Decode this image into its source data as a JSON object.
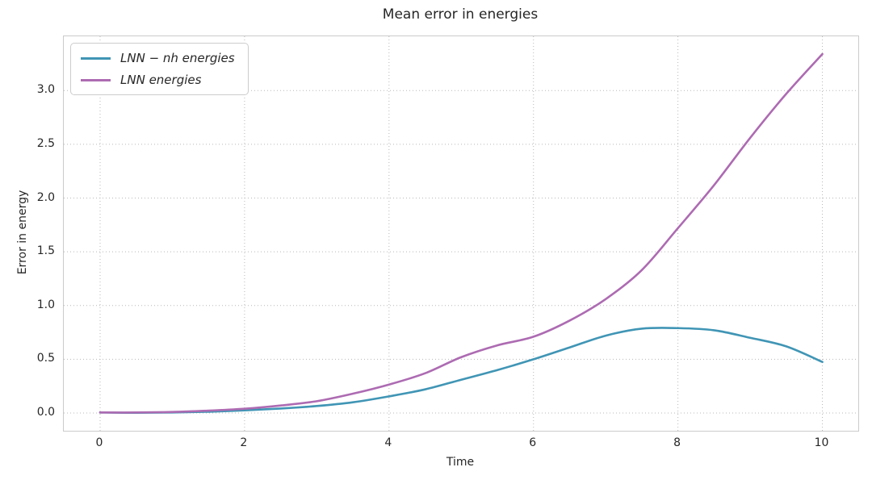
{
  "chart_data": {
    "type": "line",
    "title": "Mean error in energies",
    "xlabel": "Time",
    "ylabel": "Error in energy",
    "xlim": [
      -0.503,
      10.497
    ],
    "ylim": [
      -0.165,
      3.505
    ],
    "xticks": [
      0,
      2,
      4,
      6,
      8,
      10
    ],
    "xtick_labels": [
      "0",
      "2",
      "4",
      "6",
      "8",
      "10"
    ],
    "yticks": [
      0,
      0.5,
      1,
      1.5,
      2,
      2.5,
      3
    ],
    "ytick_labels": [
      "0.0",
      "0.5",
      "1.0",
      "1.5",
      "2.0",
      "2.5",
      "3.0"
    ],
    "grid": "dotted",
    "grid_color": "#b8b8b8",
    "spine_color": "#cbcbcb",
    "legend_position": "upper-left",
    "series": [
      {
        "name": "LNN − nh energies",
        "color": "#4095b5",
        "line_width": 2.6,
        "x": [
          0,
          0.5,
          1,
          1.5,
          2,
          2.5,
          3,
          3.5,
          4,
          4.5,
          5,
          5.5,
          6,
          6.5,
          7,
          7.5,
          8,
          8.5,
          9,
          9.5,
          10
        ],
        "y": [
          0.005,
          0.002,
          0.005,
          0.012,
          0.025,
          0.042,
          0.065,
          0.1,
          0.155,
          0.22,
          0.31,
          0.4,
          0.5,
          0.61,
          0.72,
          0.785,
          0.79,
          0.77,
          0.7,
          0.62,
          0.475
        ]
      },
      {
        "name": "LNN energies",
        "color": "#ad6bb2",
        "line_width": 2.6,
        "x": [
          0,
          0.5,
          1,
          1.5,
          2,
          2.5,
          3,
          3.5,
          4,
          4.5,
          5,
          5.5,
          6,
          6.5,
          7,
          7.5,
          8,
          8.5,
          9,
          9.5,
          10
        ],
        "y": [
          0.005,
          0.005,
          0.01,
          0.022,
          0.04,
          0.07,
          0.11,
          0.18,
          0.265,
          0.37,
          0.52,
          0.63,
          0.71,
          0.86,
          1.06,
          1.33,
          1.72,
          2.12,
          2.56,
          2.97,
          3.34
        ]
      }
    ]
  }
}
